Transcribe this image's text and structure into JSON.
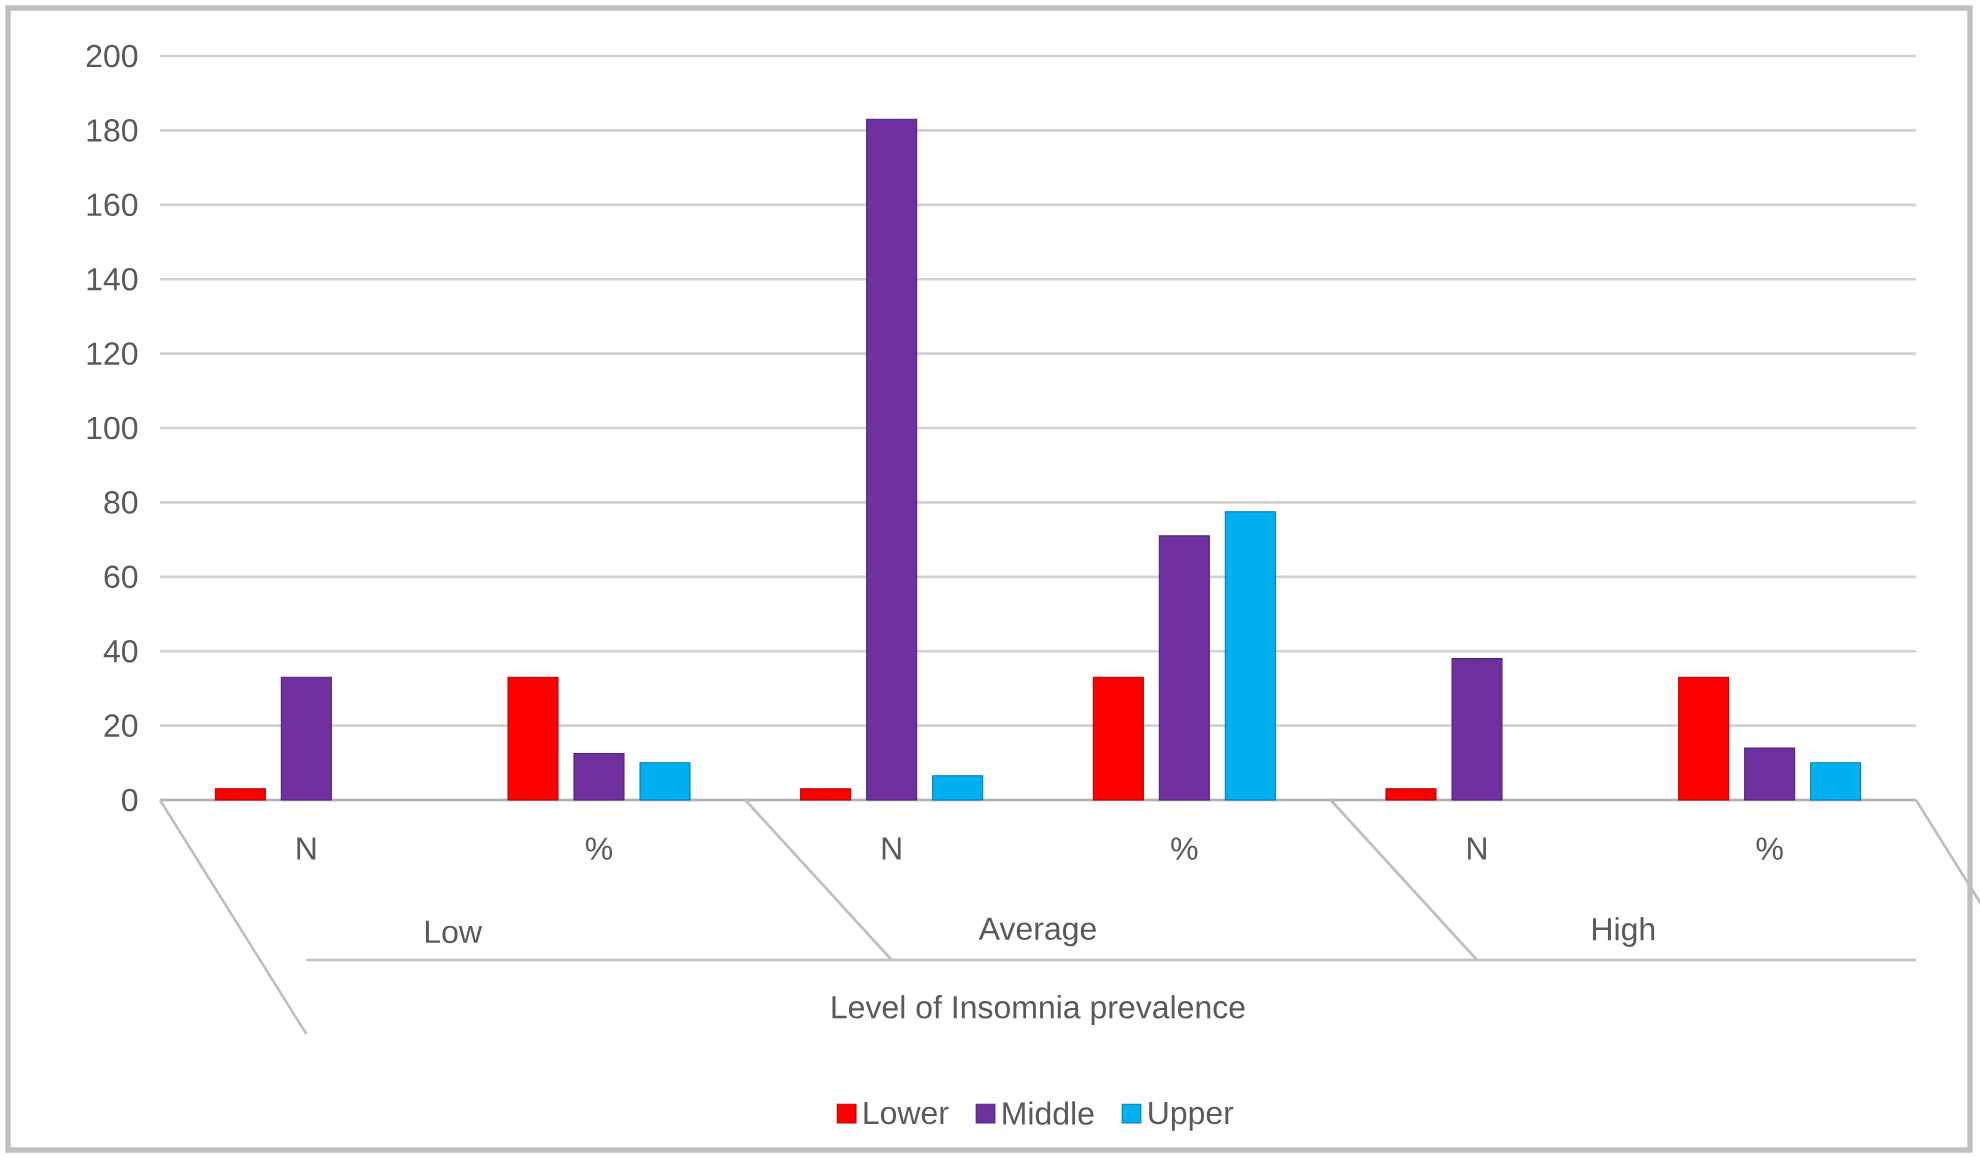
{
  "chart_data": {
    "type": "bar",
    "xlabel": "Level of Insomnia prevalence",
    "categories": [
      "N",
      "%",
      "N",
      "%",
      "N",
      "%"
    ],
    "annotations": [
      "Low",
      "Average",
      "High"
    ],
    "series": [
      {
        "name": "Lower",
        "color": "#ff0000",
        "values": [
          3,
          33,
          3,
          33,
          3,
          33
        ]
      },
      {
        "name": "Middle",
        "color": "#7030a0",
        "values": [
          33,
          12.5,
          183,
          71,
          38,
          14
        ]
      },
      {
        "name": "Upper",
        "color": "#00b0f0",
        "values": [
          null,
          10,
          6.5,
          77.5,
          null,
          10
        ]
      }
    ],
    "ylim": [
      0,
      200
    ],
    "yticks": [
      0,
      20,
      40,
      60,
      80,
      100,
      120,
      140,
      160,
      180,
      200
    ],
    "grid": "y",
    "legend": "bottom"
  }
}
